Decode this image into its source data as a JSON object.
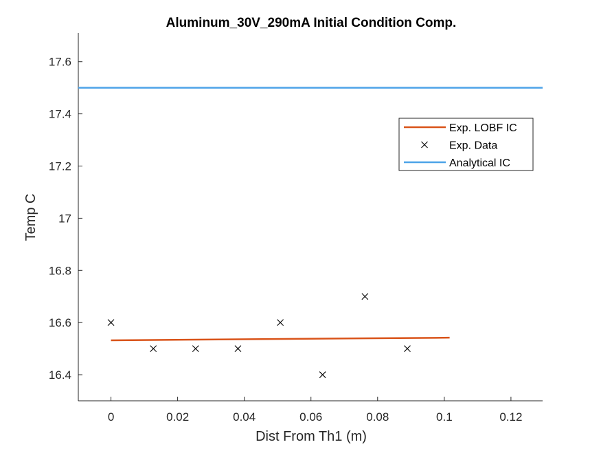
{
  "chart_data": {
    "type": "line",
    "title": "Aluminum_30V_290mA Initial Condition Comp.",
    "xlabel": "Dist From Th1 (m)",
    "ylabel": "Temp C",
    "xlim": [
      -0.0098,
      0.1295
    ],
    "ylim": [
      16.3,
      17.71
    ],
    "xticks": [
      0,
      0.02,
      0.04,
      0.06,
      0.08,
      0.1,
      0.12
    ],
    "xtick_labels": [
      "0",
      "0.02",
      "0.04",
      "0.06",
      "0.08",
      "0.1",
      "0.12"
    ],
    "yticks": [
      16.4,
      16.6,
      16.8,
      17.0,
      17.2,
      17.4,
      17.6
    ],
    "ytick_labels": [
      "16.4",
      "16.6",
      "16.8",
      "17",
      "17.2",
      "17.4",
      "17.6"
    ],
    "grid": false,
    "legend_position": "top-right",
    "series": [
      {
        "name": "Exp. LOBF IC",
        "kind": "line",
        "color": "#D95319",
        "x": [
          0,
          0.1016
        ],
        "y": [
          16.532,
          16.542
        ]
      },
      {
        "name": "Exp. Data",
        "kind": "scatter",
        "marker": "x",
        "color": "#000000",
        "x": [
          0,
          0.0127,
          0.0254,
          0.0381,
          0.0508,
          0.0635,
          0.0762,
          0.0889
        ],
        "y": [
          16.6,
          16.5,
          16.5,
          16.5,
          16.6,
          16.4,
          16.7,
          16.5
        ]
      },
      {
        "name": "Analytical IC",
        "kind": "hline",
        "color": "#4DA3E8",
        "y": 17.5
      }
    ]
  }
}
